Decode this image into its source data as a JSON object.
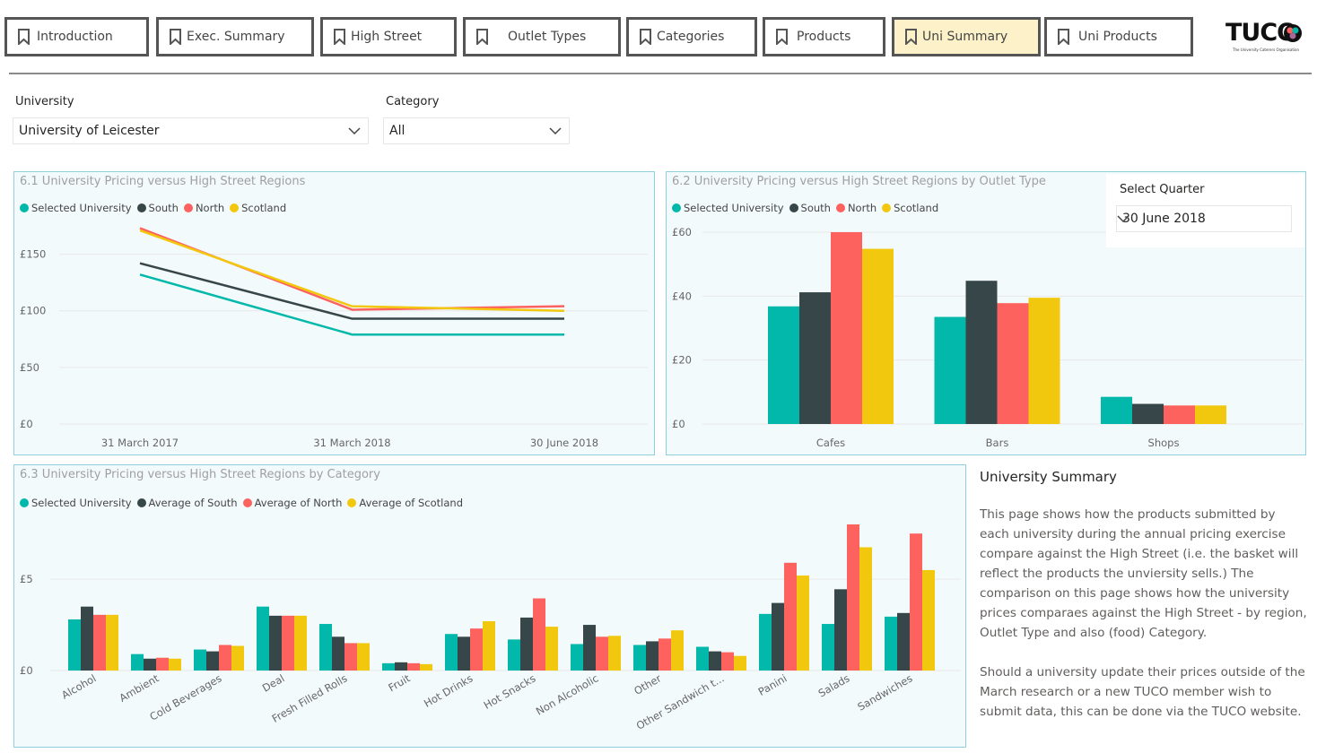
{
  "colors": {
    "selected": "#01b8aa",
    "south": "#374649",
    "north": "#fd625e",
    "scotland": "#f2c80f",
    "gridline": "#e8e8e8",
    "panel_border": "#8fd0dc"
  },
  "nav": {
    "tabs": [
      {
        "label": "Introduction",
        "active": false
      },
      {
        "label": "Exec. Summary",
        "active": false
      },
      {
        "label": "High Street",
        "active": false
      },
      {
        "label": "Outlet Types",
        "active": false
      },
      {
        "label": "Categories",
        "active": false
      },
      {
        "label": "Products",
        "active": false
      },
      {
        "label": "Uni Summary",
        "active": true
      },
      {
        "label": "Uni Products",
        "active": false
      }
    ],
    "tab_icon": "bookmark-icon"
  },
  "logo": {
    "word": "TUCO",
    "subtitle": "The University Caterers Organisation"
  },
  "filters": {
    "university": {
      "label": "University",
      "value": "University of Leicester"
    },
    "category": {
      "label": "Category",
      "value": "All"
    },
    "quarter": {
      "label": "Select Quarter",
      "value": "30 June 2018"
    }
  },
  "charts": {
    "c1": {
      "title": "6.1 University Pricing versus High Street Regions",
      "legend": [
        "Selected University",
        "South",
        "North",
        "Scotland"
      ]
    },
    "c2": {
      "title": "6.2 University Pricing versus High Street Regions by Outlet Type",
      "legend": [
        "Selected University",
        "South",
        "North",
        "Scotland"
      ]
    },
    "c3": {
      "title": "6.3 University Pricing versus High Street Regions by Category",
      "legend": [
        "Selected University",
        "Average of South",
        "Average of North",
        "Average of Scotland"
      ]
    }
  },
  "chart_data": [
    {
      "type": "line",
      "title": "6.1 University Pricing versus High Street Regions",
      "categories": [
        "31 March 2017",
        "31 March 2018",
        "30 June 2018"
      ],
      "y_ticks": [
        "£0",
        "£50",
        "£100",
        "£150"
      ],
      "ylim": [
        0,
        175
      ],
      "grid": true,
      "legend_position": "top-left",
      "series": [
        {
          "name": "Selected University",
          "values": [
            132,
            79,
            79
          ]
        },
        {
          "name": "South",
          "values": [
            142,
            93,
            93
          ]
        },
        {
          "name": "North",
          "values": [
            173,
            101,
            104
          ]
        },
        {
          "name": "Scotland",
          "values": [
            171,
            104,
            100
          ]
        }
      ]
    },
    {
      "type": "bar",
      "title": "6.2 University Pricing versus High Street Regions by Outlet Type",
      "categories": [
        "Cafes",
        "Bars",
        "Shops"
      ],
      "y_ticks": [
        "£0",
        "£20",
        "£40",
        "£60"
      ],
      "ylim": [
        0,
        60
      ],
      "grid": true,
      "legend_position": "top-left",
      "series": [
        {
          "name": "Selected University",
          "values": [
            36.8,
            33.5,
            8.5
          ]
        },
        {
          "name": "South",
          "values": [
            41.2,
            44.8,
            6.3
          ]
        },
        {
          "name": "North",
          "values": [
            60,
            37.8,
            5.8
          ]
        },
        {
          "name": "Scotland",
          "values": [
            54.8,
            39.5,
            5.8
          ]
        }
      ]
    },
    {
      "type": "bar",
      "title": "6.3 University Pricing versus High Street Regions by Category",
      "categories": [
        "Alcohol",
        "Ambient",
        "Cold Beverages",
        "Deal",
        "Fresh Filled Rolls",
        "Fruit",
        "Hot Drinks",
        "Hot Snacks",
        "Non Alcoholic",
        "Other",
        "Other Sandwich t...",
        "Panini",
        "Salads",
        "Sandwiches"
      ],
      "y_ticks": [
        "£0",
        "£5"
      ],
      "ylim": [
        0,
        8
      ],
      "grid": true,
      "legend_position": "top-left",
      "series": [
        {
          "name": "Selected University",
          "values": [
            2.8,
            0.9,
            1.15,
            3.5,
            2.55,
            0.4,
            2.0,
            1.7,
            1.45,
            1.4,
            1.3,
            3.1,
            2.55,
            2.95
          ]
        },
        {
          "name": "Average of South",
          "values": [
            3.5,
            0.65,
            1.05,
            3.0,
            1.85,
            0.45,
            1.85,
            2.9,
            2.5,
            1.6,
            1.05,
            3.7,
            4.45,
            3.15
          ]
        },
        {
          "name": "Average of North",
          "values": [
            3.05,
            0.7,
            1.4,
            3.0,
            1.5,
            0.4,
            2.3,
            3.95,
            1.85,
            1.75,
            1.0,
            5.9,
            8.0,
            7.5
          ]
        },
        {
          "name": "Average of Scotland",
          "values": [
            3.05,
            0.65,
            1.35,
            3.0,
            1.5,
            0.35,
            2.7,
            2.4,
            1.9,
            2.2,
            0.8,
            5.2,
            6.75,
            5.5
          ]
        }
      ]
    }
  ],
  "summary": {
    "heading": "University Summary",
    "para1": "This page shows how the products submitted by each university during the annual pricing exercise compare against the High Street (i.e. the basket will reflect the products the unviersity sells.) The comparison on this page shows how the university prices comparaes against the High Street - by region, Outlet Type and also (food) Category.",
    "para2": "Should a university update their prices outside of the March research or a new TUCO member wish to submit data, this can be done via the TUCO website."
  }
}
